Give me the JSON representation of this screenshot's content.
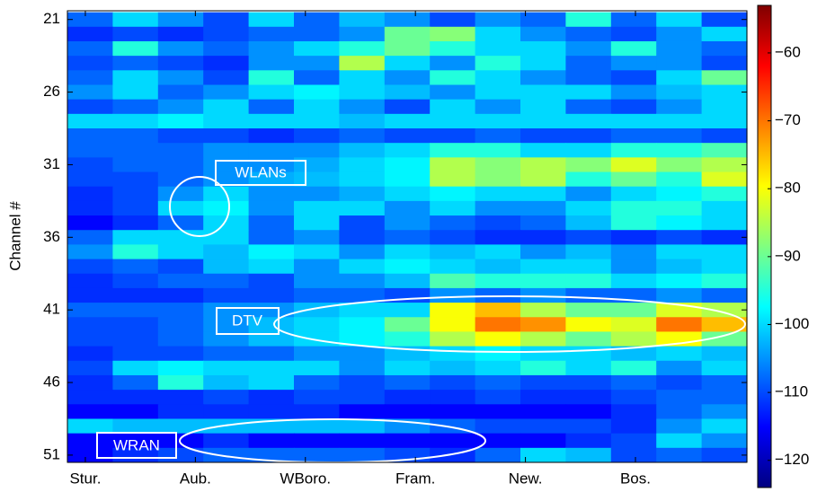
{
  "chart_data": {
    "type": "heatmap",
    "ylabel": "Channel #",
    "xticks": [
      {
        "value": 1,
        "label": "Stur."
      },
      {
        "value": 2,
        "label": "Aub."
      },
      {
        "value": 3,
        "label": "WBoro."
      },
      {
        "value": 4,
        "label": "Fram."
      },
      {
        "value": 5,
        "label": "New."
      },
      {
        "value": 6,
        "label": "Bos."
      }
    ],
    "xlim": [
      0.837,
      7.013
    ],
    "ylim": [
      20.4,
      51.5
    ],
    "yticks": [
      21,
      26,
      31,
      36,
      41,
      46,
      51
    ],
    "y": [
      21,
      22,
      23,
      24,
      25,
      26,
      27,
      28,
      29,
      30,
      31,
      32,
      33,
      34,
      35,
      36,
      37,
      38,
      39,
      40,
      41,
      42,
      43,
      44,
      45,
      46,
      47,
      48,
      49,
      50,
      51
    ],
    "colormap": "jet",
    "clim": [
      -124,
      -53
    ],
    "cticks": [
      {
        "value": -60,
        "label": "−60"
      },
      {
        "value": -70,
        "label": "−70"
      },
      {
        "value": -80,
        "label": "−80"
      },
      {
        "value": -90,
        "label": "−90"
      },
      {
        "value": -100,
        "label": "−100"
      },
      {
        "value": -110,
        "label": "−110"
      },
      {
        "value": -120,
        "label": "−120"
      }
    ],
    "annotations": [
      "WLANs",
      "DTV",
      "WRAN"
    ],
    "z": [
      [
        -108,
        -100,
        -105,
        -110,
        -100,
        -108,
        -102,
        -105,
        -110,
        -105,
        -108,
        -95,
        -108,
        -100,
        -110
      ],
      [
        -112,
        -110,
        -112,
        -110,
        -108,
        -108,
        -105,
        -90,
        -88,
        -100,
        -105,
        -108,
        -110,
        -105,
        -100
      ],
      [
        -108,
        -95,
        -105,
        -108,
        -105,
        -100,
        -95,
        -90,
        -95,
        -100,
        -100,
        -105,
        -95,
        -105,
        -108
      ],
      [
        -110,
        -108,
        -110,
        -112,
        -105,
        -105,
        -85,
        -100,
        -105,
        -95,
        -100,
        -108,
        -105,
        -105,
        -110
      ],
      [
        -108,
        -100,
        -105,
        -110,
        -95,
        -108,
        -100,
        -105,
        -95,
        -100,
        -105,
        -108,
        -110,
        -100,
        -90
      ],
      [
        -105,
        -100,
        -108,
        -105,
        -100,
        -98,
        -100,
        -102,
        -105,
        -100,
        -100,
        -100,
        -105,
        -102,
        -100
      ],
      [
        -110,
        -108,
        -105,
        -100,
        -108,
        -100,
        -105,
        -110,
        -100,
        -105,
        -100,
        -108,
        -110,
        -105,
        -100
      ],
      [
        -100,
        -100,
        -98,
        -100,
        -100,
        -100,
        -102,
        -100,
        -100,
        -100,
        -100,
        -100,
        -100,
        -100,
        -100
      ],
      [
        -108,
        -108,
        -110,
        -110,
        -112,
        -110,
        -108,
        -110,
        -110,
        -108,
        -110,
        -110,
        -108,
        -108,
        -110
      ],
      [
        -108,
        -108,
        -108,
        -105,
        -105,
        -105,
        -102,
        -100,
        -95,
        -95,
        -100,
        -100,
        -95,
        -95,
        -92
      ],
      [
        -110,
        -108,
        -108,
        -105,
        -105,
        -103,
        -100,
        -98,
        -85,
        -88,
        -85,
        -88,
        -82,
        -88,
        -85
      ],
      [
        -110,
        -110,
        -108,
        -105,
        -103,
        -102,
        -100,
        -98,
        -85,
        -88,
        -85,
        -95,
        -90,
        -95,
        -82
      ],
      [
        -112,
        -110,
        -105,
        -100,
        -105,
        -105,
        -103,
        -100,
        -98,
        -100,
        -100,
        -105,
        -100,
        -98,
        -95
      ],
      [
        -112,
        -110,
        -100,
        -98,
        -105,
        -100,
        -100,
        -105,
        -100,
        -105,
        -105,
        -100,
        -95,
        -95,
        -100
      ],
      [
        -115,
        -112,
        -108,
        -100,
        -108,
        -100,
        -110,
        -105,
        -108,
        -110,
        -108,
        -102,
        -95,
        -98,
        -100
      ],
      [
        -108,
        -100,
        -100,
        -100,
        -108,
        -105,
        -110,
        -108,
        -110,
        -112,
        -112,
        -110,
        -112,
        -110,
        -112
      ],
      [
        -105,
        -95,
        -100,
        -102,
        -98,
        -100,
        -105,
        -100,
        -102,
        -100,
        -105,
        -102,
        -105,
        -100,
        -100
      ],
      [
        -110,
        -108,
        -110,
        -102,
        -100,
        -105,
        -100,
        -98,
        -100,
        -102,
        -100,
        -100,
        -105,
        -102,
        -100
      ],
      [
        -112,
        -110,
        -108,
        -108,
        -110,
        -105,
        -105,
        -102,
        -92,
        -95,
        -95,
        -95,
        -100,
        -98,
        -95
      ],
      [
        -112,
        -112,
        -112,
        -110,
        -110,
        -108,
        -108,
        -110,
        -105,
        -108,
        -105,
        -108,
        -108,
        -105,
        -108
      ],
      [
        -108,
        -108,
        -108,
        -105,
        -105,
        -102,
        -100,
        -100,
        -80,
        -75,
        -85,
        -90,
        -90,
        -82,
        -85
      ],
      [
        -110,
        -110,
        -108,
        -105,
        -102,
        -100,
        -98,
        -90,
        -80,
        -70,
        -72,
        -80,
        -82,
        -70,
        -75
      ],
      [
        -110,
        -110,
        -108,
        -105,
        -102,
        -100,
        -98,
        -95,
        -85,
        -80,
        -85,
        -90,
        -85,
        -80,
        -90
      ],
      [
        -112,
        -110,
        -110,
        -108,
        -108,
        -105,
        -105,
        -102,
        -100,
        -98,
        -100,
        -100,
        -102,
        -100,
        -102
      ],
      [
        -110,
        -100,
        -98,
        -100,
        -100,
        -100,
        -105,
        -100,
        -102,
        -100,
        -95,
        -100,
        -95,
        -105,
        -100
      ],
      [
        -112,
        -108,
        -95,
        -102,
        -100,
        -108,
        -110,
        -108,
        -110,
        -108,
        -110,
        -110,
        -108,
        -110,
        -108
      ],
      [
        -112,
        -112,
        -112,
        -110,
        -112,
        -110,
        -110,
        -112,
        -112,
        -110,
        -112,
        -112,
        -110,
        -108,
        -108
      ],
      [
        -115,
        -115,
        -112,
        -112,
        -112,
        -112,
        -115,
        -115,
        -115,
        -115,
        -115,
        -115,
        -112,
        -108,
        -105
      ],
      [
        -100,
        -102,
        -102,
        -102,
        -102,
        -102,
        -102,
        -105,
        -108,
        -110,
        -110,
        -110,
        -112,
        -105,
        -100
      ],
      [
        -115,
        -115,
        -115,
        -112,
        -115,
        -115,
        -115,
        -115,
        -115,
        -115,
        -115,
        -112,
        -110,
        -100,
        -105
      ],
      [
        -115,
        -112,
        -110,
        -108,
        -108,
        -108,
        -108,
        -110,
        -112,
        -108,
        -100,
        -102,
        -110,
        -108,
        -110
      ]
    ]
  }
}
